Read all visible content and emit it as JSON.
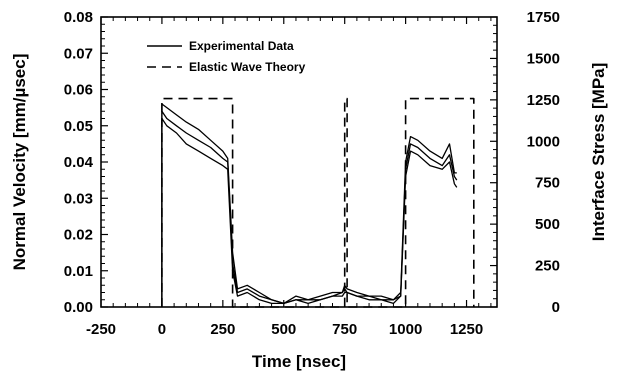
{
  "chart_data": {
    "type": "line",
    "xlabel": "Time [nsec]",
    "ylabel": "Normal Velocity [mm/µsec]",
    "y2label": "Interface Stress [MPa]",
    "xlim": [
      -250,
      1375
    ],
    "ylim": [
      0,
      0.08
    ],
    "y2lim": [
      0,
      1750
    ],
    "x_ticks": [
      "-250",
      "0",
      "250",
      "500",
      "750",
      "1000",
      "1250"
    ],
    "x_tick_values": [
      -250,
      0,
      250,
      500,
      750,
      1000,
      1250
    ],
    "y_ticks": [
      "0.00",
      "0.01",
      "0.02",
      "0.03",
      "0.04",
      "0.05",
      "0.06",
      "0.07",
      "0.08"
    ],
    "y_tick_values": [
      0,
      0.01,
      0.02,
      0.03,
      0.04,
      0.05,
      0.06,
      0.07,
      0.08
    ],
    "y2_ticks": [
      "0",
      "250",
      "500",
      "750",
      "1000",
      "1250",
      "1500",
      "1750"
    ],
    "y2_tick_values": [
      0,
      250,
      500,
      750,
      1000,
      1250,
      1500,
      1750
    ],
    "grid": false,
    "legend_position": "top-left",
    "legend": [
      {
        "label": "Experimental Data",
        "style": "solid"
      },
      {
        "label": "Elastic Wave Theory",
        "style": "dashed"
      }
    ],
    "series": [
      {
        "name": "Elastic Wave Theory",
        "style": "dashed",
        "x": [
          0,
          0,
          290,
          290,
          750,
          750,
          760,
          760,
          1000,
          1000,
          1280,
          1280
        ],
        "y": [
          0,
          0.0575,
          0.0575,
          0,
          0,
          0.0575,
          0.0575,
          0,
          0,
          0.0575,
          0.0575,
          0
        ]
      },
      {
        "name": "Experimental Data",
        "style": "solid",
        "x": [
          0,
          0,
          20,
          60,
          100,
          150,
          200,
          250,
          270,
          290,
          310,
          350,
          400,
          450,
          500,
          550,
          600,
          650,
          700,
          740,
          750,
          760,
          800,
          850,
          900,
          950,
          980,
          1000,
          1020,
          1050,
          1100,
          1150,
          1180,
          1200,
          1210
        ],
        "y": [
          0,
          0.056,
          0.055,
          0.053,
          0.051,
          0.049,
          0.046,
          0.043,
          0.041,
          0.015,
          0.005,
          0.006,
          0.004,
          0.002,
          0.001,
          0.003,
          0.002,
          0.003,
          0.004,
          0.004,
          0.006,
          0.005,
          0.004,
          0.003,
          0.003,
          0.002,
          0.004,
          0.04,
          0.047,
          0.046,
          0.043,
          0.041,
          0.045,
          0.037,
          0.037
        ]
      },
      {
        "name": "Experimental Data",
        "style": "solid",
        "x": [
          0,
          0,
          20,
          60,
          100,
          150,
          200,
          250,
          270,
          290,
          310,
          350,
          400,
          450,
          500,
          550,
          600,
          650,
          700,
          740,
          750,
          760,
          800,
          850,
          900,
          950,
          980,
          1000,
          1020,
          1050,
          1100,
          1150,
          1180,
          1200,
          1210
        ],
        "y": [
          0,
          0.054,
          0.052,
          0.05,
          0.048,
          0.046,
          0.044,
          0.041,
          0.04,
          0.012,
          0.004,
          0.005,
          0.003,
          0.002,
          0.001,
          0.002,
          0.002,
          0.002,
          0.003,
          0.004,
          0.005,
          0.004,
          0.003,
          0.003,
          0.002,
          0.002,
          0.003,
          0.038,
          0.045,
          0.044,
          0.041,
          0.039,
          0.042,
          0.036,
          0.035
        ]
      },
      {
        "name": "Experimental Data",
        "style": "solid",
        "x": [
          0,
          0,
          20,
          60,
          100,
          150,
          200,
          250,
          270,
          290,
          310,
          350,
          400,
          450,
          500,
          550,
          600,
          650,
          700,
          740,
          750,
          760,
          800,
          850,
          900,
          950,
          980,
          1000,
          1020,
          1050,
          1100,
          1150,
          1180,
          1200,
          1210
        ],
        "y": [
          0,
          0.052,
          0.05,
          0.048,
          0.045,
          0.043,
          0.041,
          0.039,
          0.038,
          0.01,
          0.003,
          0.004,
          0.002,
          0.001,
          0.001,
          0.002,
          0.001,
          0.002,
          0.003,
          0.003,
          0.004,
          0.004,
          0.003,
          0.002,
          0.002,
          0.001,
          0.003,
          0.036,
          0.043,
          0.042,
          0.039,
          0.038,
          0.04,
          0.034,
          0.033
        ]
      }
    ]
  }
}
